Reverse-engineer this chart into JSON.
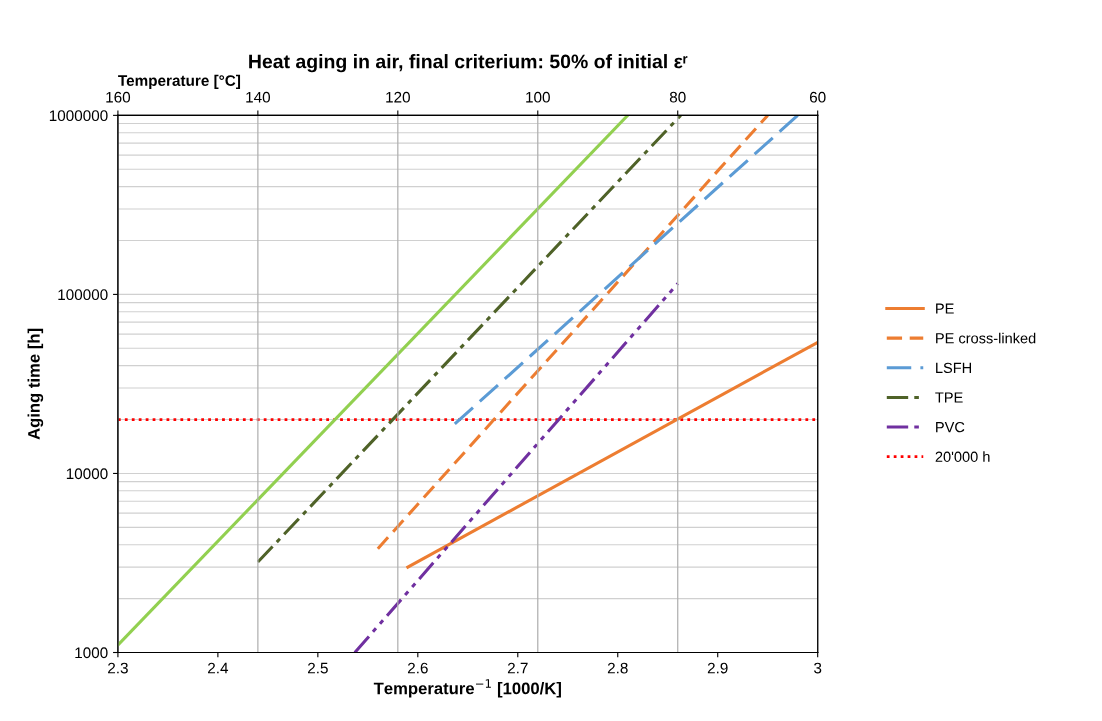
{
  "chart_data": {
    "type": "line",
    "title": "Heat aging in air, final criterium: 50% of initial εʳ",
    "xlabel": "Temperature$^{−1}$ [1000/K]",
    "ylabel": "Aging time [h]",
    "x2label": "Temperature [°C]",
    "xlim": [
      2.3,
      3
    ],
    "xticks": [
      2.3,
      2.4,
      2.5,
      2.6,
      2.7,
      2.8,
      2.9,
      3
    ],
    "x2lim": [
      160,
      60
    ],
    "x2ticks": [
      160,
      140,
      120,
      100,
      80,
      60
    ],
    "ylim": [
      1000,
      1000000
    ],
    "yticks": [
      1000,
      10000,
      100000,
      1000000
    ],
    "log": "y",
    "grid": true,
    "legend": "right",
    "marker": "none",
    "series": [
      {
        "name": "PE",
        "color": "#ed7d31",
        "line_style": "solid",
        "x": [
          2.59,
          3.0
        ],
        "values": [
          3000,
          54000
        ]
      },
      {
        "name": "PE cross-linked",
        "color": "#ed7d31",
        "line_style": "dashed",
        "x": [
          2.56,
          2.95
        ],
        "values": [
          3800,
          1000000
        ]
      },
      {
        "name": "LSFH",
        "color": "#5b9bd5",
        "line_style": "longdash",
        "x": [
          2.637,
          2.98
        ],
        "values": [
          18900,
          1000000
        ]
      },
      {
        "name": "TPE",
        "color": "#4f6228",
        "line_style": "dashdot",
        "x": [
          2.44,
          2.863
        ],
        "values": [
          3200,
          1000000
        ]
      },
      {
        "color": "#92d050",
        "line_style": "solid",
        "x": [
          2.3,
          2.81
        ],
        "values": [
          1100,
          1000000
        ]
      },
      {
        "name": "PVC",
        "color": "#7030a0",
        "line_style": "dashdotdot",
        "x": [
          2.537,
          2.86
        ],
        "values": [
          1000,
          115000
        ]
      }
    ],
    "ref_lines": [
      {
        "axis": "y",
        "value": 20000,
        "label": "20'000 h",
        "color": "#ff0000",
        "line_style": "dotted"
      }
    ]
  }
}
